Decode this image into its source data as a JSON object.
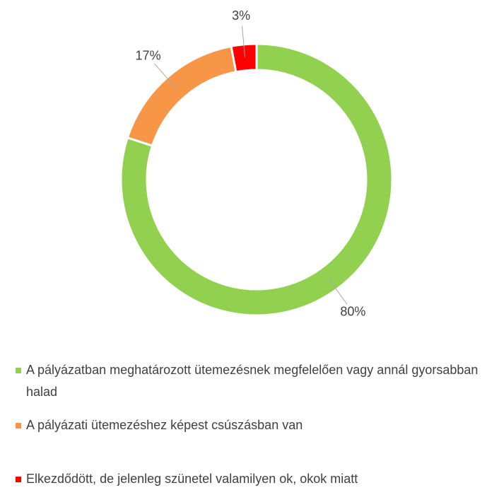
{
  "chart_data": {
    "type": "donut",
    "categories": [
      "A pályázatban meghatározott ütemezésnek megfelelően vagy annál gyorsabban halad",
      "A pályázati ütemezéshez képest csúszásban van",
      "Elkezdődött, de jelenleg szünetel valamilyen ok, okok miatt"
    ],
    "values": [
      80,
      17,
      3
    ],
    "value_labels": [
      "80%",
      "17%",
      "3%"
    ],
    "colors": [
      "#92d050",
      "#f79646",
      "#ff0000"
    ]
  }
}
